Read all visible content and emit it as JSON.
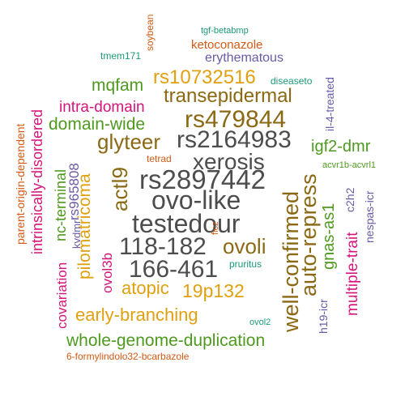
{
  "words": {
    "w01": "ovo-like",
    "w02": "rs2897442",
    "w03": "testedour",
    "w04": "rs2164983",
    "w05": "118-182",
    "w06": "166-461",
    "w07": "xerosis",
    "w08": "rs479844",
    "w09": "well-confirmed",
    "w10": "auto-repress",
    "w11": "glyteer",
    "w12": "ovoli",
    "w13": "actl9",
    "w14": "transepidermal",
    "w15": "rs10732516",
    "w16": "19p132",
    "w17": "atopic",
    "w18": "early-branching",
    "w19": "whole-genome-duplication",
    "w20": "pilomatricoma",
    "w21": "domain-wide",
    "w22": "mqfam",
    "w23": "gnas-as1",
    "w24": "igf2-dmr",
    "w25": "multiple-trait",
    "w26": "intra-domain",
    "w27": "intrinsically-disordered",
    "w28": "nc-terminal",
    "w29": "rs965808",
    "w30": "ovol3b",
    "w31": "covariation",
    "w32": "erythematous",
    "w33": "ketoconazole",
    "w34": "il-4-treated",
    "w35": "parent-origin-dependent",
    "w36": "nespas-icr",
    "w37": "h19-icr",
    "w38": "c2h2",
    "w39": "kvdmr",
    "w40": "soybean",
    "w41": "tgf-betabmp",
    "w42": "tmem171",
    "w43": "diseaseto",
    "w44": "tetrad",
    "w45": "acvr1b-acvrl1",
    "w46": "ficz",
    "w47": "pruritus",
    "w48": "ovol2",
    "w49": "6-formylindolo32-bcarbazole"
  }
}
